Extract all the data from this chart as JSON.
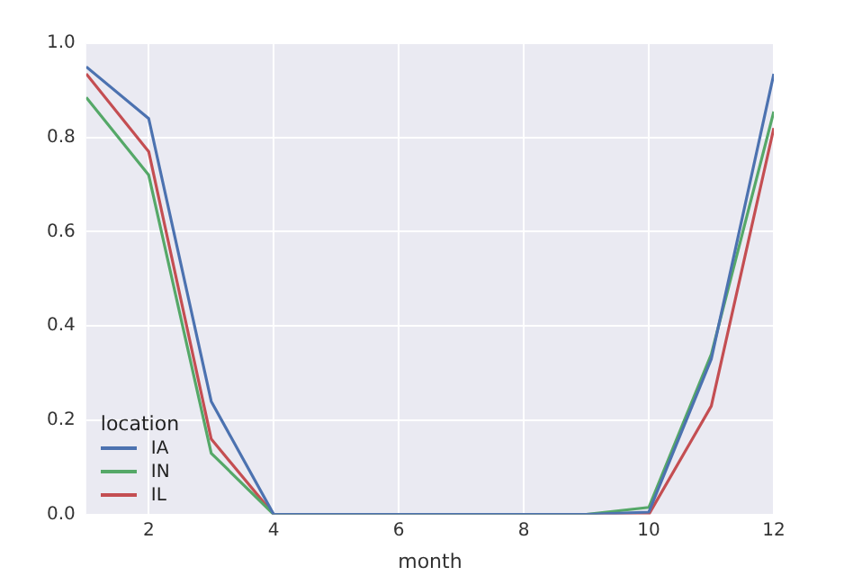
{
  "chart_data": {
    "type": "line",
    "xlabel": "month",
    "legend_title": "location",
    "legend": "bottom left",
    "grid": true,
    "marker": "none",
    "line_style": "solid",
    "x": [
      1,
      2,
      3,
      4,
      5,
      6,
      7,
      8,
      9,
      10,
      11,
      12
    ],
    "xlim": [
      1,
      12
    ],
    "xticks": [
      2,
      4,
      6,
      8,
      10,
      12
    ],
    "ylim": [
      0,
      1.0
    ],
    "yticks": [
      {
        "value": 0,
        "label": "0.0"
      },
      {
        "value": 0.2,
        "label": "0.2"
      },
      {
        "value": 0.4,
        "label": "0.4"
      },
      {
        "value": 0.6,
        "label": "0.6"
      },
      {
        "value": 0.8,
        "label": "0.8"
      },
      {
        "value": 1.0,
        "label": "1.0"
      }
    ],
    "series": [
      {
        "name": "IA",
        "color": "#4c72b0",
        "values": [
          0.95,
          0.84,
          0.24,
          0,
          0,
          0,
          0,
          0,
          0,
          0.005,
          0.33,
          0.935
        ]
      },
      {
        "name": "IN",
        "color": "#55a868",
        "values": [
          0.885,
          0.72,
          0.13,
          0,
          0,
          0,
          0,
          0,
          0,
          0.015,
          0.34,
          0.855
        ]
      },
      {
        "name": "IL",
        "color": "#c44e52",
        "values": [
          0.935,
          0.77,
          0.16,
          0,
          0,
          0,
          0,
          0,
          0,
          0,
          0.23,
          0.82
        ]
      }
    ]
  }
}
